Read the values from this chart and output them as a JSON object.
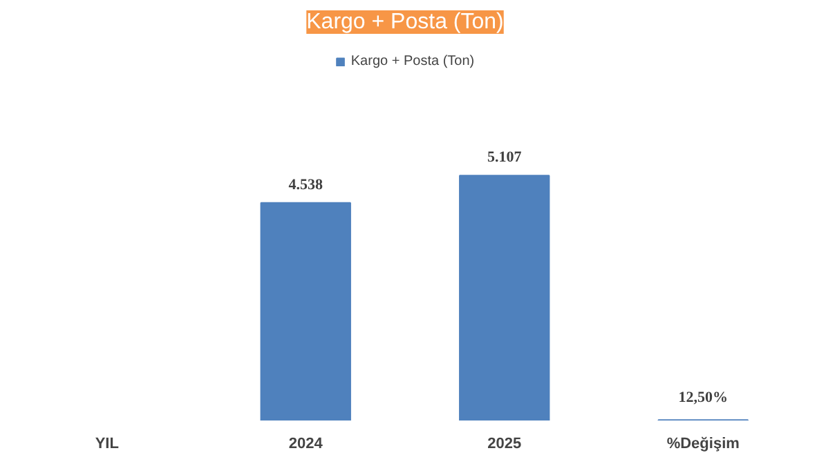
{
  "chart_data": {
    "type": "bar",
    "title": "Kargo + Posta (Ton)",
    "categories": [
      "YIL",
      "2024",
      "2025",
      "%Değişim"
    ],
    "series": [
      {
        "name": "Kargo + Posta (Ton)",
        "color": "#4f81bd",
        "values": [
          null,
          4538,
          5107,
          12.5
        ],
        "value_labels": [
          null,
          "4.538",
          "5.107",
          "12,50%"
        ]
      }
    ],
    "legend": "top"
  }
}
